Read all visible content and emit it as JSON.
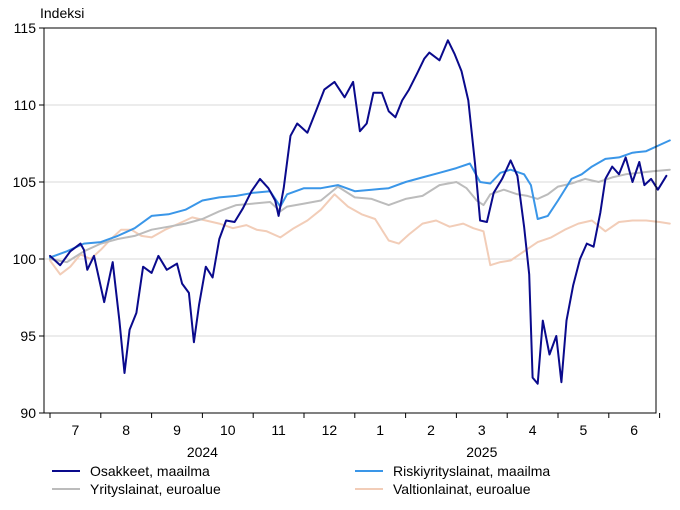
{
  "chart_data": {
    "type": "line",
    "ylabel": "Indeksi",
    "ylim": [
      90,
      115
    ],
    "yticks": [
      90,
      95,
      100,
      105,
      110,
      115
    ],
    "months": [
      "7",
      "8",
      "9",
      "10",
      "11",
      "12",
      "1",
      "2",
      "3",
      "4",
      "5",
      "6"
    ],
    "years": [
      {
        "label": "2024",
        "month_index": 3.0
      },
      {
        "label": "2025",
        "month_index": 8.5
      }
    ],
    "grid": "horizontal",
    "legend_position": "bottom",
    "series": [
      {
        "name": "Osakkeet, maailma",
        "color": "#0a0a8c",
        "points": [
          [
            0,
            100.2
          ],
          [
            0.3,
            99.6
          ],
          [
            0.6,
            100.5
          ],
          [
            0.9,
            101.0
          ],
          [
            1.0,
            100.6
          ],
          [
            1.1,
            99.3
          ],
          [
            1.3,
            100.2
          ],
          [
            1.6,
            97.2
          ],
          [
            1.85,
            99.8
          ],
          [
            2.05,
            96.0
          ],
          [
            2.2,
            92.6
          ],
          [
            2.35,
            95.4
          ],
          [
            2.55,
            96.5
          ],
          [
            2.75,
            99.5
          ],
          [
            3.0,
            99.1
          ],
          [
            3.2,
            100.2
          ],
          [
            3.45,
            99.3
          ],
          [
            3.75,
            99.7
          ],
          [
            3.9,
            98.4
          ],
          [
            4.1,
            97.8
          ],
          [
            4.25,
            94.6
          ],
          [
            4.4,
            97.0
          ],
          [
            4.6,
            99.5
          ],
          [
            4.8,
            98.8
          ],
          [
            5.0,
            101.3
          ],
          [
            5.2,
            102.5
          ],
          [
            5.45,
            102.4
          ],
          [
            5.7,
            103.3
          ],
          [
            5.95,
            104.4
          ],
          [
            6.2,
            105.2
          ],
          [
            6.45,
            104.6
          ],
          [
            6.65,
            103.8
          ],
          [
            6.75,
            102.8
          ],
          [
            6.9,
            104.6
          ],
          [
            7.1,
            108.0
          ],
          [
            7.3,
            108.8
          ],
          [
            7.6,
            108.2
          ],
          [
            7.85,
            109.6
          ],
          [
            8.1,
            111.0
          ],
          [
            8.4,
            111.5
          ],
          [
            8.7,
            110.5
          ],
          [
            8.95,
            111.5
          ],
          [
            9.15,
            108.3
          ],
          [
            9.35,
            108.8
          ],
          [
            9.55,
            110.8
          ],
          [
            9.8,
            110.8
          ],
          [
            10.0,
            109.6
          ],
          [
            10.2,
            109.2
          ],
          [
            10.4,
            110.3
          ],
          [
            10.6,
            111.0
          ],
          [
            10.85,
            112.1
          ],
          [
            11.05,
            113.0
          ],
          [
            11.2,
            113.4
          ],
          [
            11.5,
            112.9
          ],
          [
            11.75,
            114.2
          ],
          [
            11.95,
            113.3
          ],
          [
            12.15,
            112.2
          ],
          [
            12.35,
            110.3
          ],
          [
            12.55,
            106.2
          ],
          [
            12.7,
            102.5
          ],
          [
            12.9,
            102.4
          ],
          [
            13.1,
            104.3
          ],
          [
            13.35,
            105.2
          ],
          [
            13.6,
            106.4
          ],
          [
            13.8,
            105.4
          ],
          [
            14.0,
            102.1
          ],
          [
            14.15,
            99.0
          ],
          [
            14.25,
            92.3
          ],
          [
            14.4,
            91.9
          ],
          [
            14.55,
            96.0
          ],
          [
            14.75,
            93.8
          ],
          [
            14.95,
            95.0
          ],
          [
            15.1,
            92.0
          ],
          [
            15.25,
            96.0
          ],
          [
            15.45,
            98.3
          ],
          [
            15.65,
            100.0
          ],
          [
            15.85,
            101.0
          ],
          [
            16.05,
            100.8
          ],
          [
            16.25,
            103.0
          ],
          [
            16.4,
            105.2
          ],
          [
            16.6,
            106.0
          ],
          [
            16.8,
            105.5
          ],
          [
            17.0,
            106.6
          ],
          [
            17.2,
            105.0
          ],
          [
            17.4,
            106.3
          ],
          [
            17.55,
            104.8
          ],
          [
            17.75,
            105.2
          ],
          [
            17.95,
            104.5
          ],
          [
            18.2,
            105.4
          ]
        ]
      },
      {
        "name": "Riskiyrityslainat, maailma",
        "color": "#3a96e8",
        "points": [
          [
            0,
            100.1
          ],
          [
            0.5,
            100.5
          ],
          [
            1.0,
            101.0
          ],
          [
            1.5,
            101.1
          ],
          [
            2.0,
            101.5
          ],
          [
            2.5,
            102.0
          ],
          [
            3.0,
            102.8
          ],
          [
            3.5,
            102.9
          ],
          [
            4.0,
            103.2
          ],
          [
            4.5,
            103.8
          ],
          [
            5.0,
            104.0
          ],
          [
            5.5,
            104.1
          ],
          [
            6.0,
            104.3
          ],
          [
            6.5,
            104.4
          ],
          [
            6.8,
            103.4
          ],
          [
            7.0,
            104.2
          ],
          [
            7.5,
            104.6
          ],
          [
            8.0,
            104.6
          ],
          [
            8.5,
            104.8
          ],
          [
            9.0,
            104.4
          ],
          [
            9.5,
            104.5
          ],
          [
            10.0,
            104.6
          ],
          [
            10.5,
            105.0
          ],
          [
            11.0,
            105.3
          ],
          [
            11.5,
            105.6
          ],
          [
            12.0,
            105.9
          ],
          [
            12.4,
            106.2
          ],
          [
            12.7,
            105.0
          ],
          [
            13.0,
            104.9
          ],
          [
            13.3,
            105.6
          ],
          [
            13.6,
            105.8
          ],
          [
            14.0,
            105.5
          ],
          [
            14.2,
            104.8
          ],
          [
            14.4,
            102.6
          ],
          [
            14.7,
            102.8
          ],
          [
            15.0,
            103.8
          ],
          [
            15.4,
            105.2
          ],
          [
            15.7,
            105.5
          ],
          [
            16.0,
            106.0
          ],
          [
            16.4,
            106.5
          ],
          [
            16.8,
            106.6
          ],
          [
            17.2,
            106.9
          ],
          [
            17.6,
            107.0
          ],
          [
            18.0,
            107.4
          ],
          [
            18.3,
            107.7
          ]
        ]
      },
      {
        "name": "Yrityslainat, euroalue",
        "color": "#bcbcbc",
        "points": [
          [
            0,
            100.0
          ],
          [
            0.5,
            99.8
          ],
          [
            1.0,
            100.5
          ],
          [
            1.5,
            101.0
          ],
          [
            2.0,
            101.3
          ],
          [
            2.5,
            101.5
          ],
          [
            3.0,
            101.9
          ],
          [
            3.5,
            102.1
          ],
          [
            4.0,
            102.3
          ],
          [
            4.5,
            102.6
          ],
          [
            5.0,
            103.1
          ],
          [
            5.5,
            103.5
          ],
          [
            6.0,
            103.6
          ],
          [
            6.5,
            103.7
          ],
          [
            6.8,
            103.1
          ],
          [
            7.0,
            103.4
          ],
          [
            7.5,
            103.6
          ],
          [
            8.0,
            103.8
          ],
          [
            8.5,
            104.7
          ],
          [
            9.0,
            104.0
          ],
          [
            9.5,
            103.9
          ],
          [
            10.0,
            103.5
          ],
          [
            10.5,
            103.9
          ],
          [
            11.0,
            104.1
          ],
          [
            11.5,
            104.8
          ],
          [
            12.0,
            105.0
          ],
          [
            12.3,
            104.6
          ],
          [
            12.6,
            103.8
          ],
          [
            12.8,
            103.5
          ],
          [
            13.0,
            104.2
          ],
          [
            13.4,
            104.5
          ],
          [
            13.8,
            104.2
          ],
          [
            14.1,
            104.1
          ],
          [
            14.4,
            103.9
          ],
          [
            14.7,
            104.2
          ],
          [
            15.0,
            104.7
          ],
          [
            15.4,
            104.9
          ],
          [
            15.8,
            105.2
          ],
          [
            16.2,
            105.0
          ],
          [
            16.6,
            105.3
          ],
          [
            17.0,
            105.5
          ],
          [
            17.4,
            105.6
          ],
          [
            17.8,
            105.7
          ],
          [
            18.3,
            105.8
          ]
        ]
      },
      {
        "name": "Valtionlainat, euroalue",
        "color": "#f2cdb8",
        "points": [
          [
            0,
            99.9
          ],
          [
            0.3,
            99.0
          ],
          [
            0.6,
            99.5
          ],
          [
            0.9,
            100.3
          ],
          [
            1.2,
            100.0
          ],
          [
            1.5,
            100.6
          ],
          [
            1.8,
            101.3
          ],
          [
            2.1,
            101.9
          ],
          [
            2.4,
            101.9
          ],
          [
            2.7,
            101.5
          ],
          [
            3.0,
            101.4
          ],
          [
            3.4,
            101.9
          ],
          [
            3.8,
            102.3
          ],
          [
            4.2,
            102.7
          ],
          [
            4.6,
            102.5
          ],
          [
            5.0,
            102.3
          ],
          [
            5.4,
            102.0
          ],
          [
            5.8,
            102.2
          ],
          [
            6.1,
            101.9
          ],
          [
            6.4,
            101.8
          ],
          [
            6.8,
            101.4
          ],
          [
            7.2,
            102.0
          ],
          [
            7.6,
            102.5
          ],
          [
            8.0,
            103.2
          ],
          [
            8.4,
            104.2
          ],
          [
            8.8,
            103.4
          ],
          [
            9.2,
            102.9
          ],
          [
            9.6,
            102.6
          ],
          [
            10.0,
            101.2
          ],
          [
            10.3,
            101.0
          ],
          [
            10.6,
            101.6
          ],
          [
            11.0,
            102.3
          ],
          [
            11.4,
            102.5
          ],
          [
            11.8,
            102.1
          ],
          [
            12.2,
            102.3
          ],
          [
            12.5,
            102.0
          ],
          [
            12.8,
            101.8
          ],
          [
            13.0,
            99.6
          ],
          [
            13.3,
            99.8
          ],
          [
            13.6,
            99.9
          ],
          [
            14.0,
            100.5
          ],
          [
            14.4,
            101.1
          ],
          [
            14.8,
            101.4
          ],
          [
            15.2,
            101.9
          ],
          [
            15.6,
            102.3
          ],
          [
            16.0,
            102.5
          ],
          [
            16.4,
            101.8
          ],
          [
            16.8,
            102.4
          ],
          [
            17.2,
            102.5
          ],
          [
            17.6,
            102.5
          ],
          [
            18.0,
            102.4
          ],
          [
            18.3,
            102.3
          ]
        ]
      }
    ]
  }
}
